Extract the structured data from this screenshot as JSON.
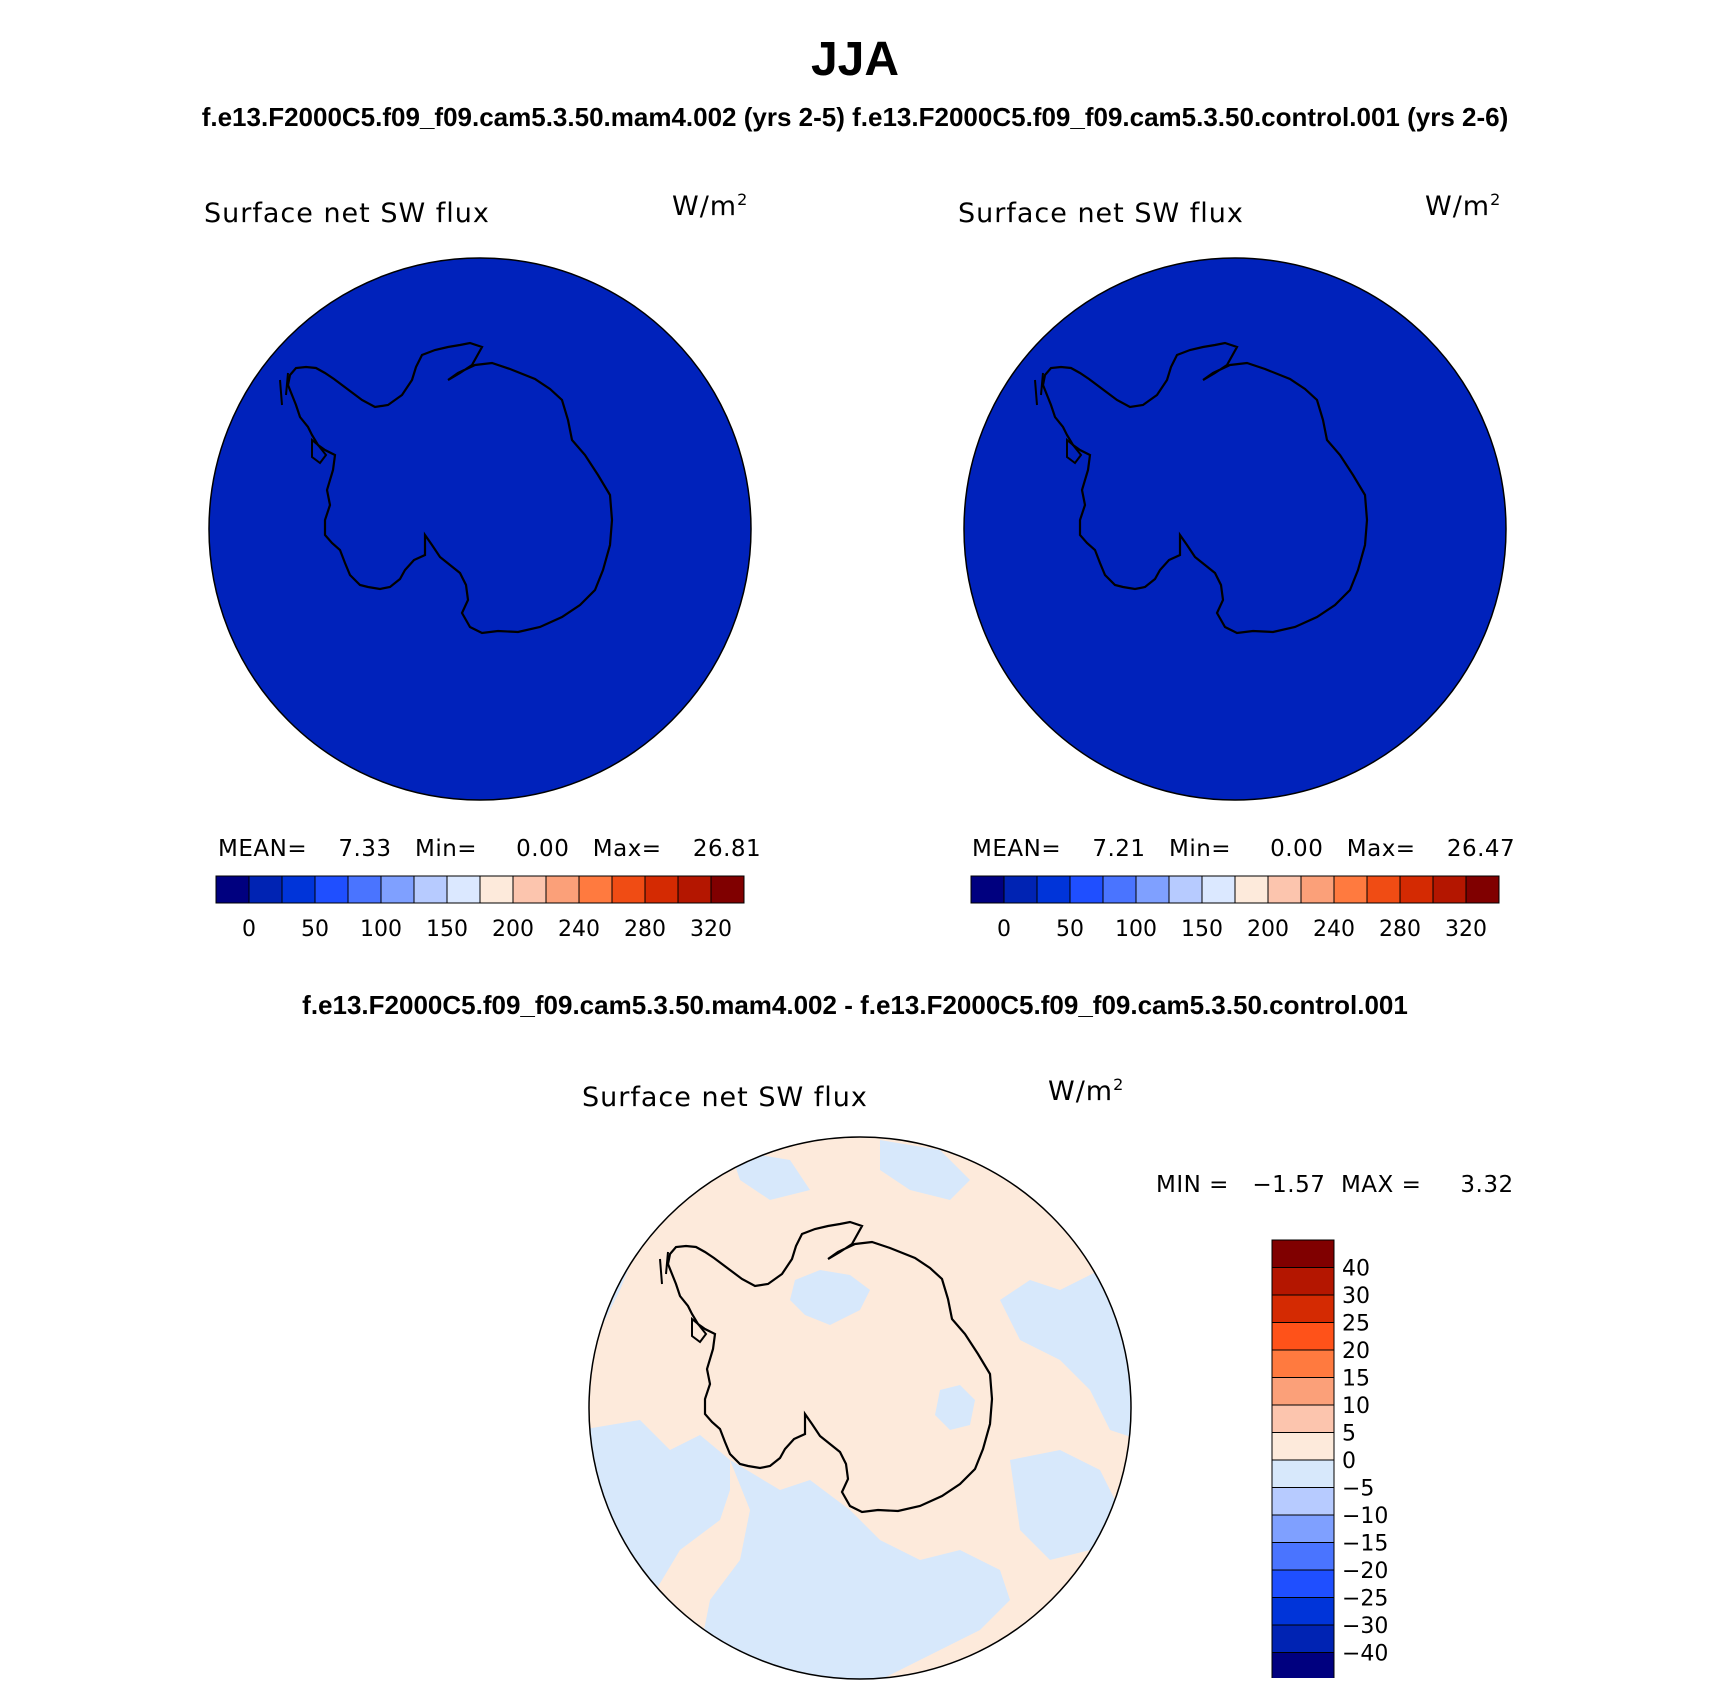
{
  "figure": {
    "title": "JJA",
    "subtitle": "f.e13.F2000C5.f09_f09.cam5.3.50.mam4.002 (yrs 2-5) f.e13.F2000C5.f09_f09.cam5.3.50.control.001 (yrs 2-6)",
    "diff_title": "f.e13.F2000C5.f09_f09.cam5.3.50.mam4.002 - f.e13.F2000C5.f09_f09.cam5.3.50.control.001"
  },
  "panels": [
    {
      "variable": "Surface net SW flux",
      "units_base": "W/m",
      "units_exp": "2",
      "stats": "MEAN=    7.33   Min=     0.00   Max=    26.81",
      "fill_color": "#0022bb"
    },
    {
      "variable": "Surface net SW flux",
      "units_base": "W/m",
      "units_exp": "2",
      "stats": "MEAN=    7.21   Min=     0.00   Max=    26.47",
      "fill_color": "#0022bb"
    },
    {
      "variable": "Surface net SW flux",
      "units_base": "W/m",
      "units_exp": "2",
      "stats": "MIN =   −1.57  MAX =     3.32",
      "ocean_color": "#fdeadb",
      "neg_color": "#d7e8fb"
    }
  ],
  "colorbar_abs": {
    "labels": [
      "0",
      "50",
      "100",
      "150",
      "200",
      "240",
      "280",
      "320"
    ],
    "colors": [
      "#00007f",
      "#0023b3",
      "#0034d9",
      "#1f4fff",
      "#4a74ff",
      "#7fa0ff",
      "#b7cbff",
      "#dbe8ff",
      "#fdeadb",
      "#fcc5ae",
      "#fba079",
      "#ff7a3f",
      "#f04c14",
      "#d42a02",
      "#b41600",
      "#800000"
    ]
  },
  "colorbar_diff": {
    "labels": [
      "40",
      "30",
      "25",
      "20",
      "15",
      "10",
      "5",
      "0",
      "−5",
      "−10",
      "−15",
      "−20",
      "−25",
      "−30",
      "−40"
    ],
    "colors_top_to_bottom": [
      "#800000",
      "#b41600",
      "#d42a02",
      "#ff5219",
      "#ff7a3f",
      "#fba079",
      "#fcc5ae",
      "#fdeadb",
      "#d7e8fb",
      "#b7cbff",
      "#7fa0ff",
      "#4a74ff",
      "#1f4fff",
      "#0034d9",
      "#0023b3",
      "#00007f"
    ]
  }
}
